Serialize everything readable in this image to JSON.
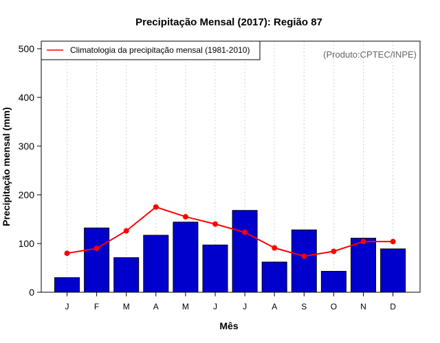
{
  "chart_data": {
    "type": "bar",
    "title": "Precipitação Mensal (2017): Região 87",
    "xlabel": "Mês",
    "ylabel": "Precipitação mensal (mm)",
    "ylim": [
      0,
      500
    ],
    "yticks": [
      0,
      100,
      200,
      300,
      400,
      500
    ],
    "categories": [
      "J",
      "F",
      "M",
      "A",
      "M",
      "J",
      "J",
      "A",
      "S",
      "O",
      "N",
      "D"
    ],
    "series": [
      {
        "name": "Precipitação mensal (2017)",
        "kind": "bar",
        "color": "#0000CD",
        "values": [
          30,
          132,
          71,
          117,
          144,
          97,
          168,
          62,
          128,
          43,
          111,
          89
        ]
      },
      {
        "name": "Climatologia da precipitação mensal (1981-2010)",
        "kind": "line",
        "color": "#FF0000",
        "values": [
          80,
          90,
          126,
          175,
          155,
          140,
          123,
          91,
          74,
          84,
          104,
          104
        ]
      }
    ],
    "legend": {
      "position": "top-left",
      "entries": [
        "Climatologia da precipitação mensal (1981-2010)"
      ]
    },
    "annotation": "(Produto:CPTEC/INPE)",
    "grid": "vertical dotted"
  }
}
